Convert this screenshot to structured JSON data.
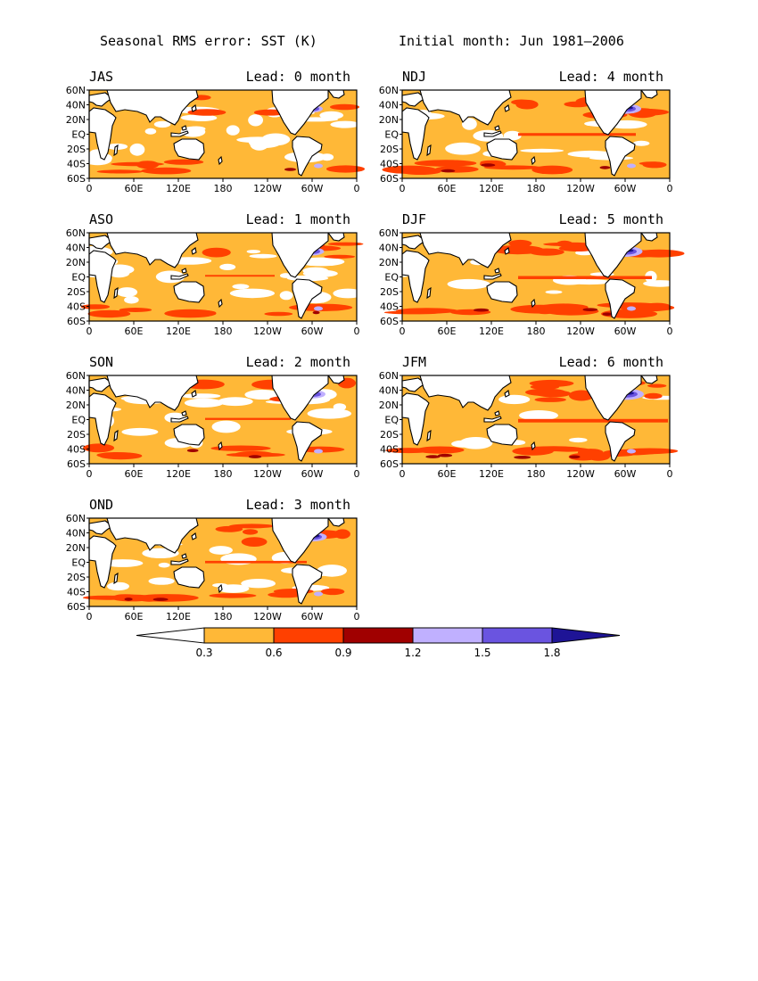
{
  "figure": {
    "title": "Seasonal RMS error: SST (K)",
    "subtitle": "Initial month: Jun 1981—2006"
  },
  "panels": [
    {
      "season": "JAS",
      "lead": "Lead: 0 month",
      "level": 0
    },
    {
      "season": "ASO",
      "lead": "Lead: 1 month",
      "level": 1
    },
    {
      "season": "SON",
      "lead": "Lead: 2 month",
      "level": 2
    },
    {
      "season": "OND",
      "lead": "Lead: 3 month",
      "level": 3
    },
    {
      "season": "NDJ",
      "lead": "Lead: 4 month",
      "level": 4
    },
    {
      "season": "DJF",
      "lead": "Lead: 5 month",
      "level": 5
    },
    {
      "season": "JFM",
      "lead": "Lead: 6 month",
      "level": 6
    }
  ],
  "axes": {
    "x_ticks": [
      "0",
      "60E",
      "120E",
      "180",
      "120W",
      "60W",
      "0"
    ],
    "y_ticks": [
      "60N",
      "40N",
      "20N",
      "EQ",
      "20S",
      "40S",
      "60S"
    ]
  },
  "colorbar": {
    "labels": [
      "0.3",
      "0.6",
      "0.9",
      "1.2",
      "1.5",
      "1.8"
    ],
    "colors": [
      "#ffffff",
      "#ffb837",
      "#ff4000",
      "#a00000",
      "#c0b0ff",
      "#6a54e0",
      "#1e1496"
    ]
  },
  "colors": {
    "ocean_base": "#ffb837",
    "band_red": "#ff4000",
    "dark_red": "#a00000",
    "light_purple": "#c0b0ff",
    "purple": "#6a54e0",
    "navy": "#1e1496",
    "land": "#ffffff"
  }
}
